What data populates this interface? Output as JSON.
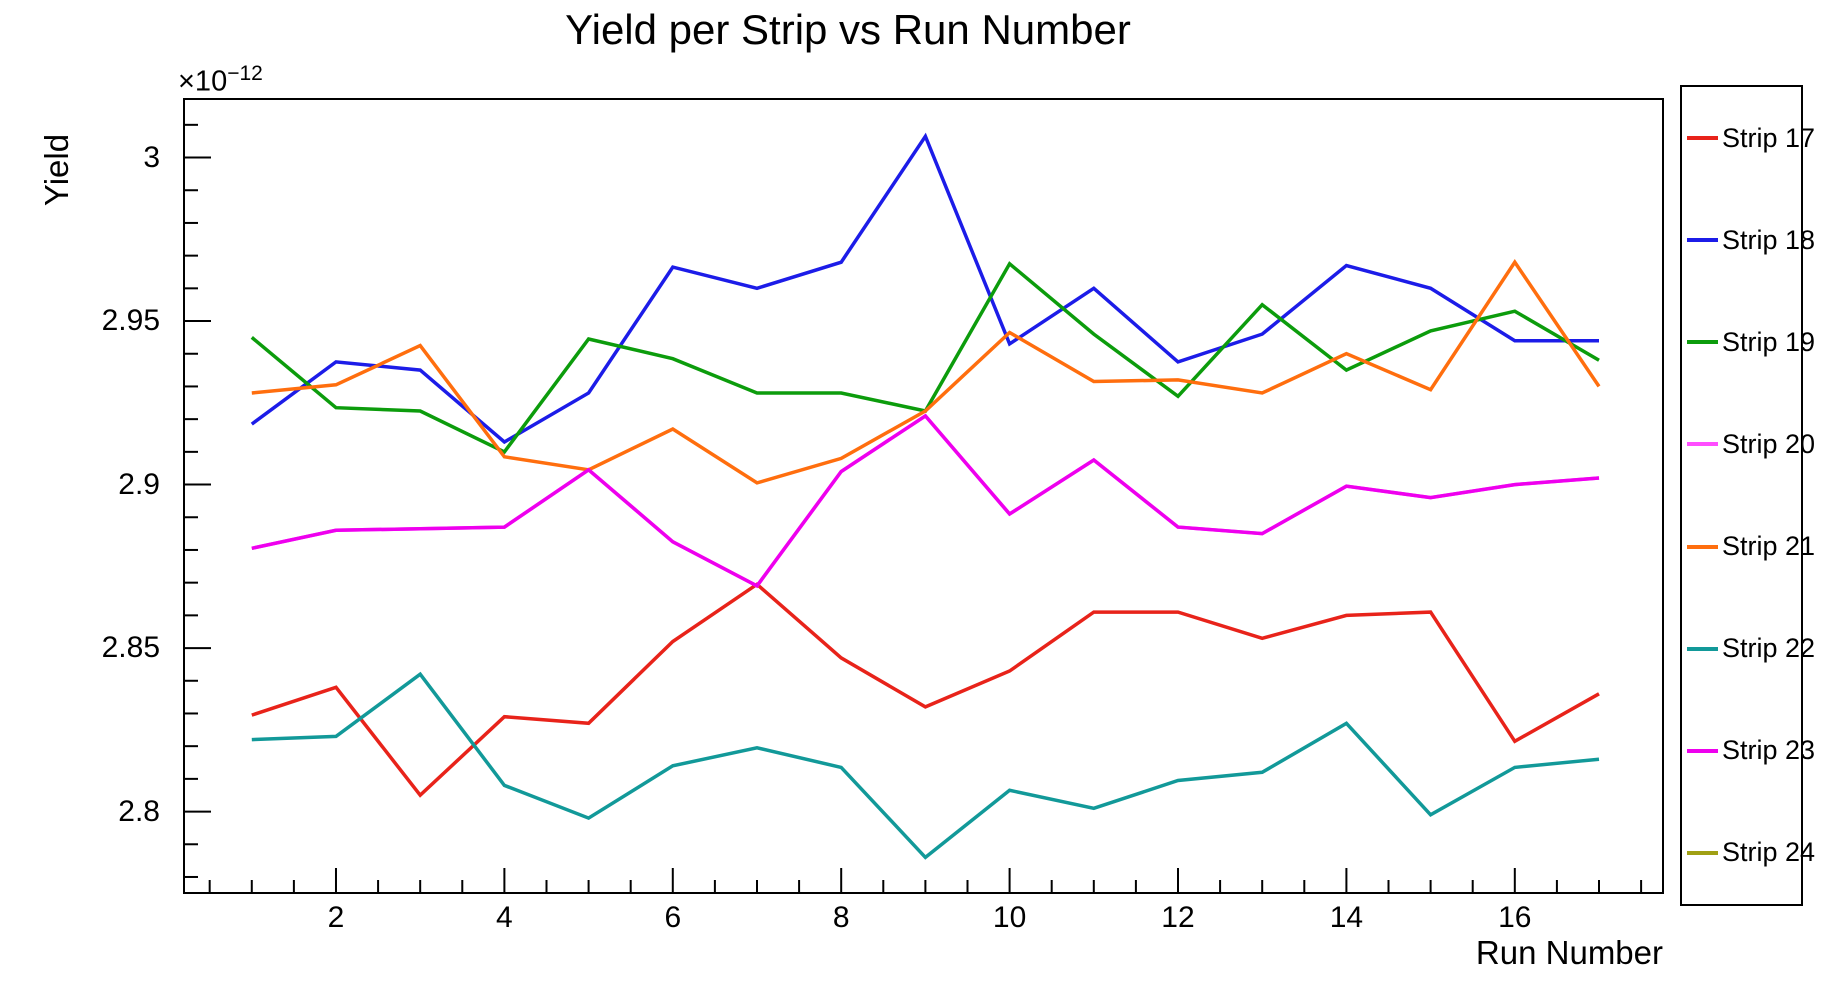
{
  "window": {
    "title": "Yield per Strip vs Run Number"
  },
  "chart_data": {
    "type": "line",
    "title": "Yield per Strip vs Run Number",
    "xlabel": "Run Number",
    "ylabel": "Yield",
    "y_exponent": {
      "prefix": "×10",
      "sup": "−12"
    },
    "unit_multiplier": "1e-12",
    "grid": false,
    "legend_position": "right-outside",
    "x": [
      1,
      2,
      3,
      4,
      5,
      6,
      7,
      8,
      9,
      10,
      11,
      12,
      13,
      14,
      15,
      16,
      17
    ],
    "xlim": [
      0.195,
      17.76
    ],
    "ylim": [
      2.7751,
      3.0179
    ],
    "x_major_ticks": {
      "values": [
        2,
        4,
        6,
        8,
        10,
        12,
        14,
        16
      ],
      "labels": [
        "2",
        "4",
        "6",
        "8",
        "10",
        "12",
        "14",
        "16"
      ]
    },
    "x_minor_step": 0.5,
    "x_minor_range": [
      0.5,
      17.5
    ],
    "y_major_ticks": {
      "values": [
        2.8,
        2.85,
        2.9,
        2.95,
        3.0
      ],
      "labels": [
        "2.8",
        "2.85",
        "2.9",
        "2.95",
        "3"
      ]
    },
    "y_minor_step": 0.01,
    "y_minor_range": [
      2.78,
      3.01
    ],
    "series": [
      {
        "id": "strip-17",
        "name": "Strip 17",
        "color": "#e8231a",
        "visible": true,
        "values": [
          2.8295,
          2.838,
          2.805,
          2.829,
          2.827,
          2.852,
          2.8695,
          2.847,
          2.832,
          2.843,
          2.861,
          2.861,
          2.853,
          2.86,
          2.861,
          2.8215,
          2.836
        ]
      },
      {
        "id": "strip-18",
        "name": "Strip 18",
        "color": "#1c1ce8",
        "visible": true,
        "values": [
          2.9185,
          2.9375,
          2.935,
          2.913,
          2.928,
          2.9665,
          2.96,
          2.968,
          3.0065,
          2.943,
          2.96,
          2.9375,
          2.946,
          2.967,
          2.96,
          2.944,
          2.944
        ]
      },
      {
        "id": "strip-19",
        "name": "Strip 19",
        "color": "#0c9c0c",
        "visible": true,
        "values": [
          2.945,
          2.9235,
          2.9225,
          2.91,
          2.9445,
          2.9385,
          2.928,
          2.928,
          2.9225,
          2.9675,
          2.946,
          2.927,
          2.955,
          2.935,
          2.947,
          2.953,
          2.938
        ]
      },
      {
        "id": "strip-20",
        "name": "Strip 20",
        "color": "#ff4dff",
        "visible": true,
        "note": "coincides with Strip 23 polyline; hidden beneath it in draw order",
        "values": [
          2.8805,
          2.886,
          2.8865,
          2.887,
          2.9045,
          2.8825,
          2.869,
          2.904,
          2.921,
          2.891,
          2.9075,
          2.887,
          2.885,
          2.8995,
          2.896,
          2.9,
          2.902
        ]
      },
      {
        "id": "strip-21",
        "name": "Strip 21",
        "color": "#ff6e0e",
        "visible": true,
        "values": [
          2.928,
          2.9305,
          2.9425,
          2.9085,
          2.9045,
          2.917,
          2.9005,
          2.908,
          2.9225,
          2.9465,
          2.9315,
          2.932,
          2.928,
          2.94,
          2.929,
          2.968,
          2.93
        ]
      },
      {
        "id": "strip-22",
        "name": "Strip 22",
        "color": "#129999",
        "visible": true,
        "values": [
          2.822,
          2.823,
          2.842,
          2.808,
          2.798,
          2.814,
          2.8195,
          2.8135,
          2.786,
          2.8065,
          2.801,
          2.8095,
          2.812,
          2.827,
          2.799,
          2.8135,
          2.816
        ]
      },
      {
        "id": "strip-23",
        "name": "Strip 23",
        "color": "#ee00ee",
        "visible": true,
        "values": [
          2.8805,
          2.886,
          2.8865,
          2.887,
          2.9045,
          2.8825,
          2.869,
          2.904,
          2.921,
          2.891,
          2.9075,
          2.887,
          2.885,
          2.8995,
          2.896,
          2.9,
          2.902
        ]
      },
      {
        "id": "strip-24",
        "name": "Strip 24",
        "color": "#a0a014",
        "visible": false,
        "note": "legend entry only; no line visible within plot range",
        "values": []
      }
    ]
  },
  "legend": {
    "entries": [
      {
        "label": "Strip 17",
        "color": "#e8231a"
      },
      {
        "label": "Strip 18",
        "color": "#1c1ce8"
      },
      {
        "label": "Strip 19",
        "color": "#0c9c0c"
      },
      {
        "label": "Strip 20",
        "color": "#ff4dff"
      },
      {
        "label": "Strip 21",
        "color": "#ff6e0e"
      },
      {
        "label": "Strip 22",
        "color": "#129999"
      },
      {
        "label": "Strip 23",
        "color": "#ee00ee"
      },
      {
        "label": "Strip 24",
        "color": "#a0a014"
      }
    ]
  }
}
